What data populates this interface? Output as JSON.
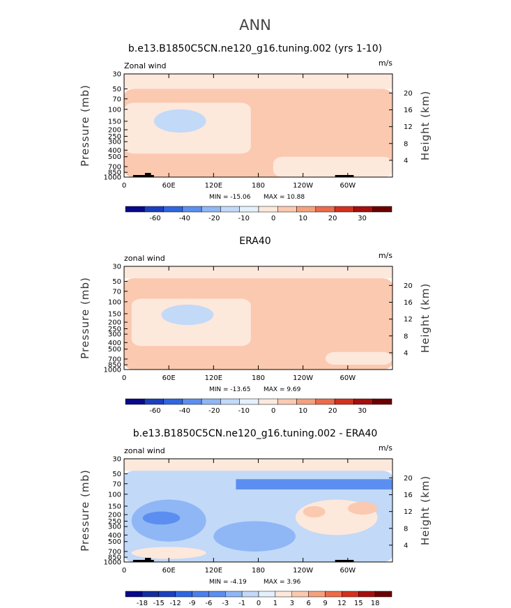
{
  "main_title": "ANN",
  "chart_data": [
    {
      "type": "heatmap",
      "title": "b.e13.B1850C5CN.ne120_g16.tuning.002 (yrs 1-10)",
      "left_label": "Zonal wind",
      "units": "m/s",
      "ylabel": "Pressure (mb)",
      "ylabel_right": "Height (km)",
      "xticks": [
        "0",
        "60E",
        "120E",
        "180",
        "120W",
        "60W"
      ],
      "xtick_positions_deg": [
        0,
        60,
        120,
        180,
        240,
        300
      ],
      "pressure_ticks": [
        "30",
        "50",
        "70",
        "100",
        "150",
        "200",
        "250",
        "300",
        "400",
        "500",
        "700",
        "850",
        "1000"
      ],
      "height_ticks": [
        "20",
        "16",
        "12",
        "8",
        "4"
      ],
      "min_text": "MIN = -15.06",
      "max_text": "MAX =  10.88",
      "colorbar_labels": [
        "-60",
        "-40",
        "-20",
        "-10",
        "0",
        "10",
        "20",
        "30"
      ],
      "colorbar_colors": [
        "#08088a",
        "#1b3fbf",
        "#2f66e0",
        "#5b8ef0",
        "#8fb6f5",
        "#c2d9f8",
        "#e4f0fb",
        "#fde8dc",
        "#fbc9b0",
        "#f5a07e",
        "#ec6b4a",
        "#d4301f",
        "#a50f0f",
        "#6b0000"
      ],
      "features": [
        {
          "shape": "band",
          "lon": [
            0,
            360
          ],
          "p": [
            30,
            50
          ],
          "value": -5
        },
        {
          "shape": "region",
          "lon": [
            0,
            360
          ],
          "p": [
            50,
            1000
          ],
          "value": 3
        },
        {
          "shape": "region",
          "lon": [
            0,
            170
          ],
          "p": [
            80,
            450
          ],
          "value": -5
        },
        {
          "shape": "blob",
          "lon": [
            40,
            110
          ],
          "p": [
            100,
            220
          ],
          "value": -12
        },
        {
          "shape": "blob",
          "lon": [
            180,
            270
          ],
          "p": [
            90,
            300
          ],
          "value": 8
        },
        {
          "shape": "blob",
          "lon": [
            290,
            340
          ],
          "p": [
            100,
            260
          ],
          "value": 8
        },
        {
          "shape": "blob",
          "lon": [
            20,
            100
          ],
          "p": [
            550,
            900
          ],
          "value": 6
        },
        {
          "shape": "region",
          "lon": [
            200,
            360
          ],
          "p": [
            500,
            1000
          ],
          "value": -4
        }
      ]
    },
    {
      "type": "heatmap",
      "title": "ERA40",
      "left_label": "zonal wind",
      "units": "m/s",
      "ylabel": "Pressure (mb)",
      "ylabel_right": "Height (km)",
      "xticks": [
        "0",
        "60E",
        "120E",
        "180",
        "120W",
        "60W"
      ],
      "xtick_positions_deg": [
        0,
        60,
        120,
        180,
        240,
        300
      ],
      "pressure_ticks": [
        "30",
        "50",
        "70",
        "100",
        "150",
        "200",
        "250",
        "300",
        "400",
        "500",
        "700",
        "850",
        "1000"
      ],
      "height_ticks": [
        "20",
        "16",
        "12",
        "8",
        "4"
      ],
      "min_text": "MIN = -13.65",
      "max_text": "MAX =   9.69",
      "colorbar_labels": [
        "-60",
        "-40",
        "-20",
        "-10",
        "0",
        "10",
        "20",
        "30"
      ],
      "colorbar_colors": [
        "#08088a",
        "#1b3fbf",
        "#2f66e0",
        "#5b8ef0",
        "#8fb6f5",
        "#c2d9f8",
        "#e4f0fb",
        "#fde8dc",
        "#fbc9b0",
        "#f5a07e",
        "#ec6b4a",
        "#d4301f",
        "#a50f0f",
        "#6b0000"
      ],
      "features": [
        {
          "shape": "band",
          "lon": [
            0,
            360
          ],
          "p": [
            30,
            45
          ],
          "value": -5
        },
        {
          "shape": "region",
          "lon": [
            0,
            360
          ],
          "p": [
            45,
            1000
          ],
          "value": 3
        },
        {
          "shape": "region",
          "lon": [
            10,
            170
          ],
          "p": [
            90,
            450
          ],
          "value": -5
        },
        {
          "shape": "blob",
          "lon": [
            50,
            120
          ],
          "p": [
            110,
            220
          ],
          "value": -12
        },
        {
          "shape": "blob",
          "lon": [
            185,
            275
          ],
          "p": [
            80,
            280
          ],
          "value": 8
        },
        {
          "shape": "blob",
          "lon": [
            300,
            350
          ],
          "p": [
            90,
            230
          ],
          "value": 8
        },
        {
          "shape": "blob",
          "lon": [
            10,
            60
          ],
          "p": [
            600,
            900
          ],
          "value": 6
        },
        {
          "shape": "region",
          "lon": [
            270,
            360
          ],
          "p": [
            550,
            850
          ],
          "value": -4
        }
      ]
    },
    {
      "type": "heatmap",
      "title": "b.e13.B1850C5CN.ne120_g16.tuning.002 - ERA40",
      "left_label": "zonal wind",
      "units": "m/s",
      "ylabel": "Pressure (mb)",
      "ylabel_right": "Height (km)",
      "xticks": [
        "0",
        "60E",
        "120E",
        "180",
        "120W",
        "60W"
      ],
      "xtick_positions_deg": [
        0,
        60,
        120,
        180,
        240,
        300
      ],
      "pressure_ticks": [
        "30",
        "50",
        "70",
        "100",
        "150",
        "200",
        "250",
        "300",
        "400",
        "500",
        "700",
        "850",
        "1000"
      ],
      "height_ticks": [
        "20",
        "16",
        "12",
        "8",
        "4"
      ],
      "min_text": "MIN =  -4.19",
      "max_text": "MAX =   3.96",
      "colorbar_labels": [
        "-18",
        "-15",
        "-12",
        "-9",
        "-6",
        "-3",
        "-1",
        "0",
        "1",
        "3",
        "6",
        "9",
        "12",
        "15",
        "18"
      ],
      "colorbar_colors": [
        "#08088a",
        "#132e9e",
        "#1b3fbf",
        "#2f66e0",
        "#4a80eb",
        "#5b8ef0",
        "#8fb6f5",
        "#c2d9f8",
        "#e4f0fb",
        "#fde8dc",
        "#fbc9b0",
        "#f5a07e",
        "#ec6b4a",
        "#d4301f",
        "#a50f0f",
        "#6b0000"
      ],
      "features": [
        {
          "shape": "band",
          "lon": [
            0,
            360
          ],
          "p": [
            30,
            45
          ],
          "value": 1.5
        },
        {
          "shape": "region",
          "lon": [
            0,
            360
          ],
          "p": [
            45,
            1000
          ],
          "value": -0.5
        },
        {
          "shape": "band",
          "lon": [
            150,
            360
          ],
          "p": [
            60,
            85
          ],
          "value": -3
        },
        {
          "shape": "blob",
          "lon": [
            10,
            110
          ],
          "p": [
            120,
            500
          ],
          "value": -2
        },
        {
          "shape": "blob",
          "lon": [
            25,
            75
          ],
          "p": [
            180,
            280
          ],
          "value": -4
        },
        {
          "shape": "blob",
          "lon": [
            230,
            340
          ],
          "p": [
            120,
            400
          ],
          "value": 2
        },
        {
          "shape": "blob",
          "lon": [
            240,
            270
          ],
          "p": [
            150,
            220
          ],
          "value": 3.5
        },
        {
          "shape": "blob",
          "lon": [
            300,
            340
          ],
          "p": [
            130,
            200
          ],
          "value": 3.5
        },
        {
          "shape": "blob",
          "lon": [
            120,
            230
          ],
          "p": [
            250,
            700
          ],
          "value": -2
        },
        {
          "shape": "blob",
          "lon": [
            10,
            110
          ],
          "p": [
            600,
            900
          ],
          "value": 2
        }
      ]
    }
  ]
}
